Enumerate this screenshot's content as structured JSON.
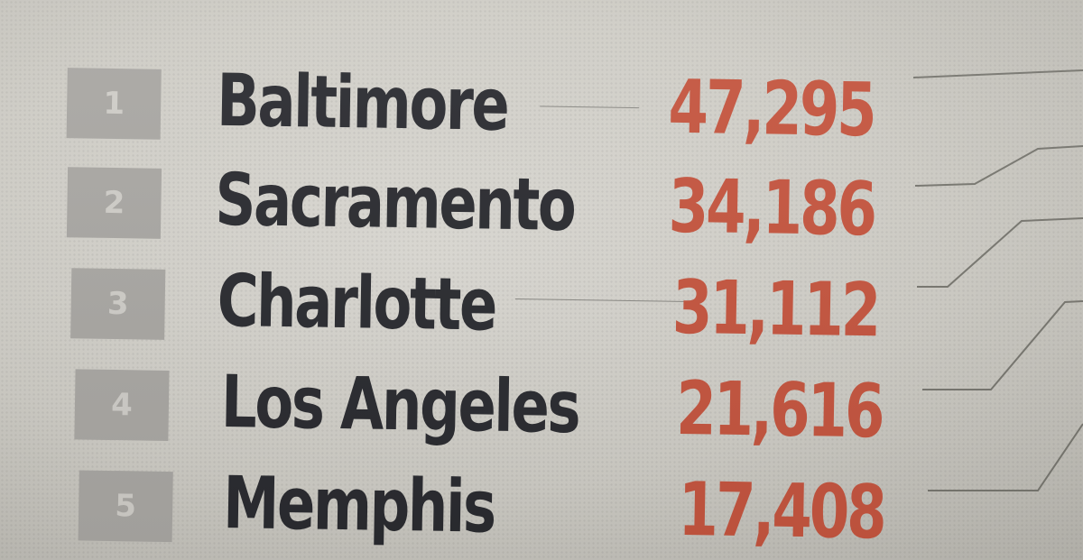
{
  "ranking": [
    {
      "rank": "1",
      "city": "Baltimore",
      "value": "47,295"
    },
    {
      "rank": "2",
      "city": "Sacramento",
      "value": "34,186"
    },
    {
      "rank": "3",
      "city": "Charlotte",
      "value": "31,112"
    },
    {
      "rank": "4",
      "city": "Los Angeles",
      "value": "21,616"
    },
    {
      "rank": "5",
      "city": "Memphis",
      "value": "17,408"
    }
  ],
  "colors": {
    "value_text": "#c5553f",
    "city_text": "#2a2b30",
    "rank_box": "#a9a7a3",
    "background": "#cfcdc7"
  }
}
